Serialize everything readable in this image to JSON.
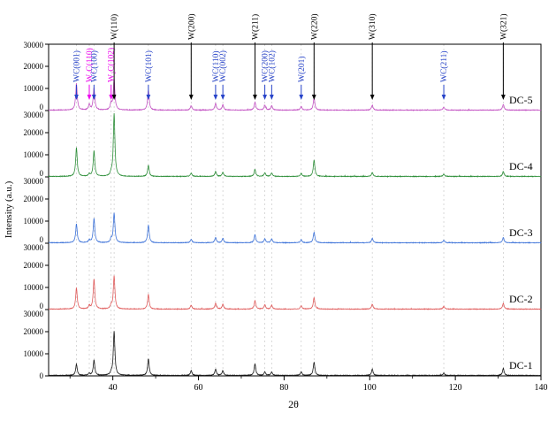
{
  "figure": {
    "background": "#ffffff",
    "frame_color": "#000000",
    "gridline_color": "#c9c9c9"
  },
  "chart_data": {
    "type": "line",
    "title": "",
    "xlabel": "2θ",
    "ylabel": "Intensity (a.u.)",
    "x_range": [
      25,
      140
    ],
    "x_ticks": [
      40,
      60,
      80,
      100,
      120,
      140
    ],
    "x_minor_tick_step": 10,
    "panel_y_range": [
      0,
      30000
    ],
    "panel_y_ticks": [
      0,
      10000,
      20000,
      30000
    ],
    "grid": "vertical dashed lines at annotated peak positions",
    "legend_position": "sample name at right of each panel",
    "peak_positions": [
      31.5,
      34.5,
      35.6,
      39.6,
      40.3,
      48.3,
      58.3,
      64.0,
      65.7,
      73.2,
      75.5,
      77.1,
      84.0,
      87.0,
      100.6,
      117.3,
      131.2
    ],
    "series": [
      {
        "name": "DC-5",
        "color": "#c353c3",
        "peak_heights": [
          12000,
          2500,
          10000,
          3000,
          14000,
          9000,
          2000,
          3000,
          2400,
          3500,
          2200,
          2000,
          1600,
          5500,
          2200,
          1300,
          2600
        ]
      },
      {
        "name": "DC-4",
        "color": "#2e8f3a",
        "peak_heights": [
          13000,
          1000,
          11500,
          1200,
          28500,
          5000,
          1500,
          2200,
          1800,
          3200,
          1600,
          1500,
          1300,
          7500,
          1800,
          1000,
          2200
        ]
      },
      {
        "name": "DC-3",
        "color": "#3f74d9",
        "peak_heights": [
          8500,
          1200,
          11000,
          1500,
          13500,
          8000,
          1600,
          2400,
          2000,
          3600,
          1800,
          1700,
          1400,
          4800,
          2000,
          1100,
          2400
        ]
      },
      {
        "name": "DC-2",
        "color": "#e05c5c",
        "peak_heights": [
          9500,
          1500,
          13500,
          1500,
          15000,
          6500,
          1800,
          2600,
          2200,
          3800,
          2000,
          1800,
          1500,
          5200,
          2200,
          1200,
          2600
        ]
      },
      {
        "name": "DC-1",
        "color": "#1a1a1a",
        "peak_heights": [
          5000,
          800,
          7000,
          1000,
          20000,
          7500,
          2200,
          2800,
          2200,
          5200,
          1600,
          1500,
          1600,
          6000,
          2800,
          1100,
          3200
        ]
      }
    ],
    "annotation_colors": {
      "black": "#000000",
      "blue": "#2743c9",
      "magenta": "#ee00ee"
    },
    "annotations": [
      {
        "label": "WC(001)",
        "x": 31.5,
        "row": "bottom",
        "color": "blue"
      },
      {
        "label": "W₂C(110)",
        "x": 34.5,
        "row": "bottom",
        "color": "magenta"
      },
      {
        "label": "WC(100)",
        "x": 35.6,
        "row": "bottom",
        "color": "blue"
      },
      {
        "label": "W₂C(102)",
        "x": 39.6,
        "row": "bottom",
        "color": "magenta"
      },
      {
        "label": "W(110)",
        "x": 40.3,
        "row": "top",
        "color": "black"
      },
      {
        "label": "WC(101)",
        "x": 48.3,
        "row": "bottom",
        "color": "blue"
      },
      {
        "label": "W(200)",
        "x": 58.3,
        "row": "top",
        "color": "black"
      },
      {
        "label": "WC(110)",
        "x": 64.0,
        "row": "bottom",
        "color": "blue"
      },
      {
        "label": "WC(002)",
        "x": 65.7,
        "row": "bottom",
        "color": "blue"
      },
      {
        "label": "W(211)",
        "x": 73.2,
        "row": "top",
        "color": "black"
      },
      {
        "label": "WC(200)",
        "x": 75.5,
        "row": "bottom",
        "color": "blue"
      },
      {
        "label": "WC(102)",
        "x": 77.1,
        "row": "bottom",
        "color": "blue"
      },
      {
        "label": "W(201)",
        "x": 84.0,
        "row": "bottom",
        "color": "blue"
      },
      {
        "label": "W(220)",
        "x": 87.0,
        "row": "top",
        "color": "black"
      },
      {
        "label": "W(310)",
        "x": 100.6,
        "row": "top",
        "color": "black"
      },
      {
        "label": "WC(211)",
        "x": 117.3,
        "row": "bottom",
        "color": "blue"
      },
      {
        "label": "W(321)",
        "x": 131.2,
        "row": "top",
        "color": "black"
      }
    ]
  }
}
